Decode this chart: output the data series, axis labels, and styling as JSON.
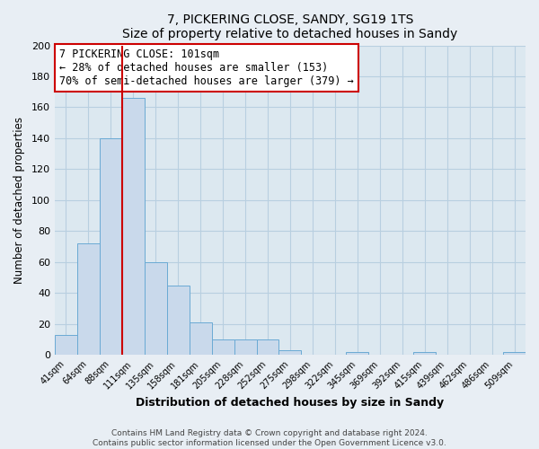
{
  "title": "7, PICKERING CLOSE, SANDY, SG19 1TS",
  "subtitle": "Size of property relative to detached houses in Sandy",
  "xlabel": "Distribution of detached houses by size in Sandy",
  "ylabel": "Number of detached properties",
  "bar_labels": [
    "41sqm",
    "64sqm",
    "88sqm",
    "111sqm",
    "135sqm",
    "158sqm",
    "181sqm",
    "205sqm",
    "228sqm",
    "252sqm",
    "275sqm",
    "298sqm",
    "322sqm",
    "345sqm",
    "369sqm",
    "392sqm",
    "415sqm",
    "439sqm",
    "462sqm",
    "486sqm",
    "509sqm"
  ],
  "bar_values": [
    13,
    72,
    140,
    166,
    60,
    45,
    21,
    10,
    10,
    10,
    3,
    0,
    0,
    2,
    0,
    0,
    2,
    0,
    0,
    0,
    2
  ],
  "bar_color": "#c9d9eb",
  "bar_edge_color": "#6aaad4",
  "vline_x_index": 3,
  "vline_color": "#cc0000",
  "ylim": [
    0,
    200
  ],
  "yticks": [
    0,
    20,
    40,
    60,
    80,
    100,
    120,
    140,
    160,
    180,
    200
  ],
  "annotation_text_line1": "7 PICKERING CLOSE: 101sqm",
  "annotation_text_line2": "← 28% of detached houses are smaller (153)",
  "annotation_text_line3": "70% of semi-detached houses are larger (379) →",
  "footer_line1": "Contains HM Land Registry data © Crown copyright and database right 2024.",
  "footer_line2": "Contains public sector information licensed under the Open Government Licence v3.0.",
  "fig_background_color": "#e8eef4",
  "plot_background_color": "#dce8f0",
  "grid_color": "#b8cfe0"
}
